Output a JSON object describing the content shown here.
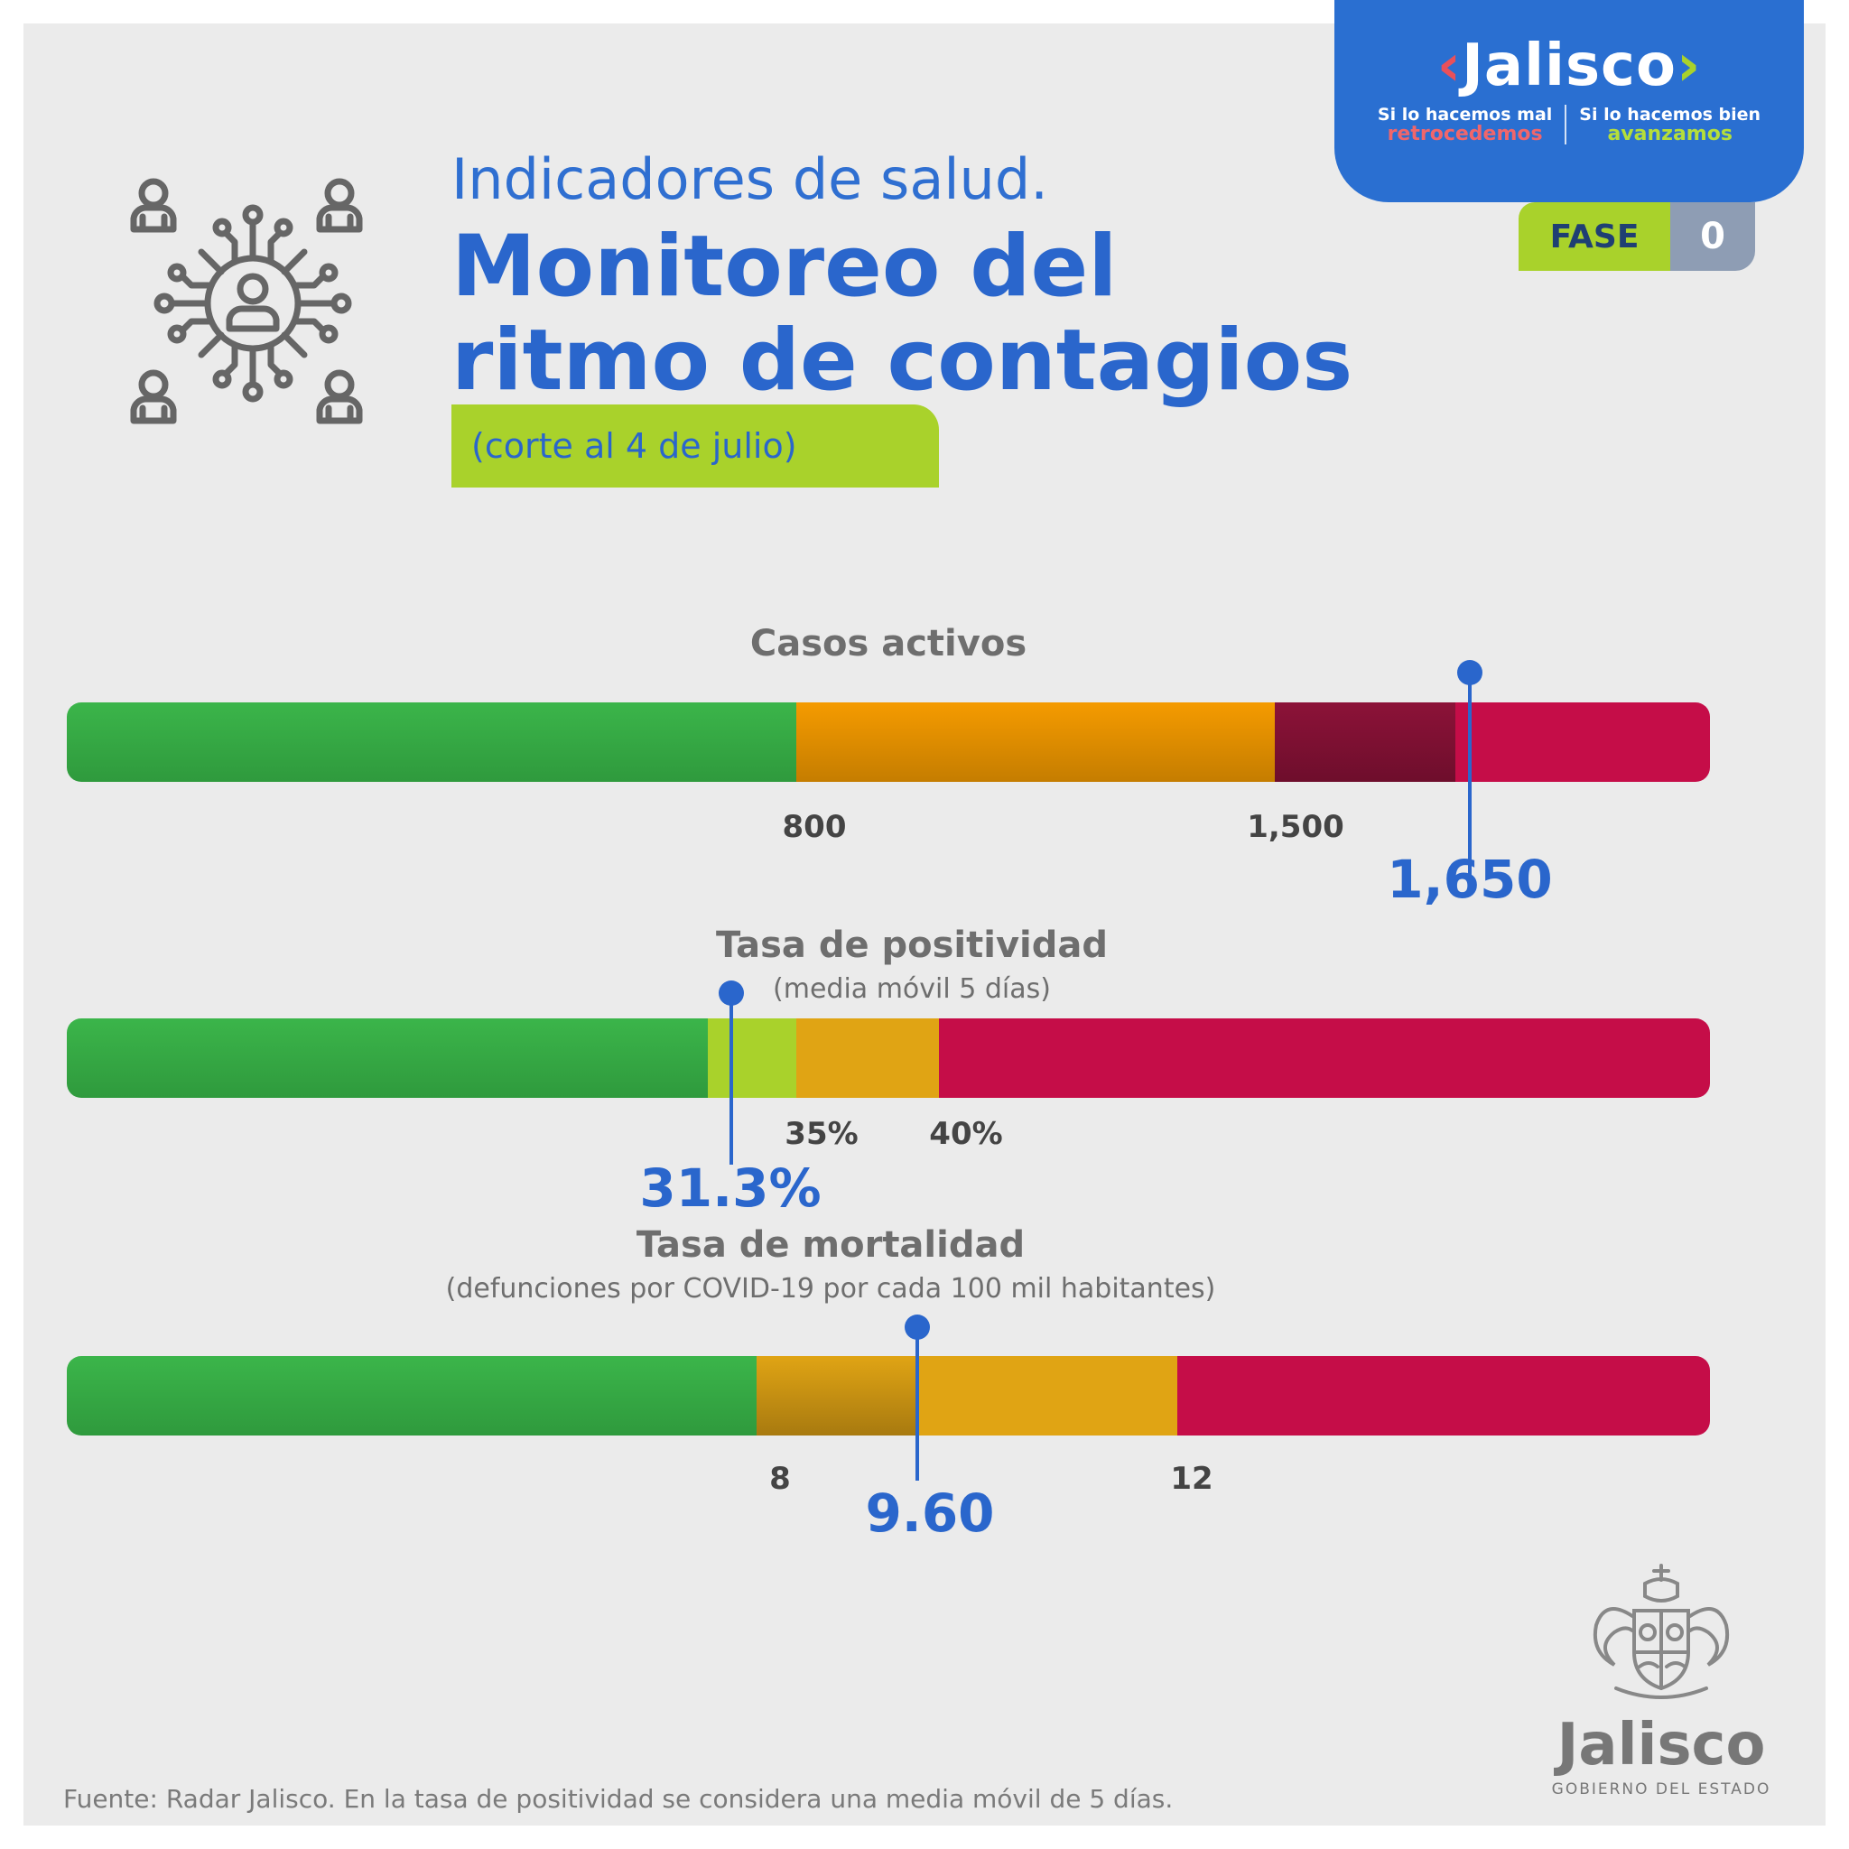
{
  "badge": {
    "logo_text": "Jalisco",
    "tag_left_line1": "Si lo hacemos mal",
    "tag_left_line2": "retrocedemos",
    "tag_right_line1": "Si lo hacemos bien",
    "tag_right_line2": "avanzamos"
  },
  "fase": {
    "label": "FASE",
    "number": "0"
  },
  "header": {
    "line1": "Indicadores de salud.",
    "title_line1": "Monitoreo del",
    "title_line2": "ritmo de contagios",
    "cutoff": "(corte al 4 de julio)"
  },
  "indicators": [
    {
      "title": "Casos activos",
      "subtitle": "",
      "ticks": [
        "800",
        "1,500"
      ],
      "value": "1,650"
    },
    {
      "title": "Tasa de positividad",
      "subtitle": "(media móvil 5 días)",
      "ticks": [
        "35%",
        "40%"
      ],
      "value": "31.3%"
    },
    {
      "title": "Tasa de mortalidad",
      "subtitle": "(defunciones por COVID-19 por cada 100 mil habitantes)",
      "ticks": [
        "8",
        "12"
      ],
      "value": "9.60"
    }
  ],
  "colors": {
    "green": "#3bb54a",
    "light_green": "#a9d22b",
    "orange": "#f59b00",
    "amber": "#e0a414",
    "dark_red": "#8c1238",
    "red": "#c50d48",
    "blue": "#2a66cc"
  },
  "source": "Fuente: Radar Jalisco. En la tasa de positividad se considera una media móvil de 5 días.",
  "government": {
    "wordmark": "Jalisco",
    "subtitle": "GOBIERNO DEL ESTADO"
  },
  "icons": {
    "network": "people-network-icon",
    "seal": "jalisco-coat-of-arms"
  }
}
